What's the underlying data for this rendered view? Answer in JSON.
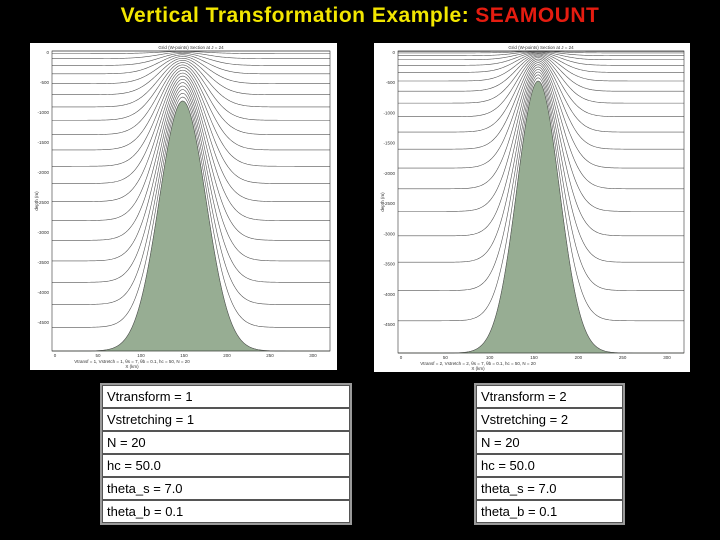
{
  "title": {
    "prefix": "Vertical Transformation Example:",
    "highlight": "SEAMOUNT"
  },
  "panels": [
    {
      "plot": {
        "title": "Grid (W-points) Section at J = 24",
        "y_label": "depth (m)",
        "x_label": "X (km)",
        "caption": "Vtransf = 1, Vstretch = 1, θs = 7, θb = 0.1, hc = 50, N = 20",
        "x_ticks": [
          "0",
          "50",
          "100",
          "150",
          "200",
          "250",
          "300"
        ],
        "y_ticks": [
          "0",
          "-500",
          "-1000",
          "-1500",
          "-2000",
          "-2500",
          "-3000",
          "-3500",
          "-4000",
          "-4500"
        ]
      },
      "table": [
        "Vtransform = 1",
        "Vstretching = 1",
        "N = 20",
        "hc = 50.0",
        "theta_s = 7.0",
        "theta_b = 0.1"
      ]
    },
    {
      "plot": {
        "title": "Grid (W-points) Section at J = 24",
        "y_label": "depth (m)",
        "x_label": "X (km)",
        "caption": "Vtransf = 2, Vstretch = 2, θs = 7, θb = 0.1, hc = 50, N = 20",
        "x_ticks": [
          "0",
          "50",
          "100",
          "150",
          "200",
          "250",
          "300"
        ],
        "y_ticks": [
          "0",
          "-500",
          "-1000",
          "-1500",
          "-2000",
          "-2500",
          "-3000",
          "-3500",
          "-4000",
          "-4500"
        ]
      },
      "table": [
        "Vtransform = 2",
        "Vstretching = 2",
        "N = 20",
        "hc = 50.0",
        "theta_s = 7.0",
        "theta_b = 0.1"
      ]
    }
  ]
}
